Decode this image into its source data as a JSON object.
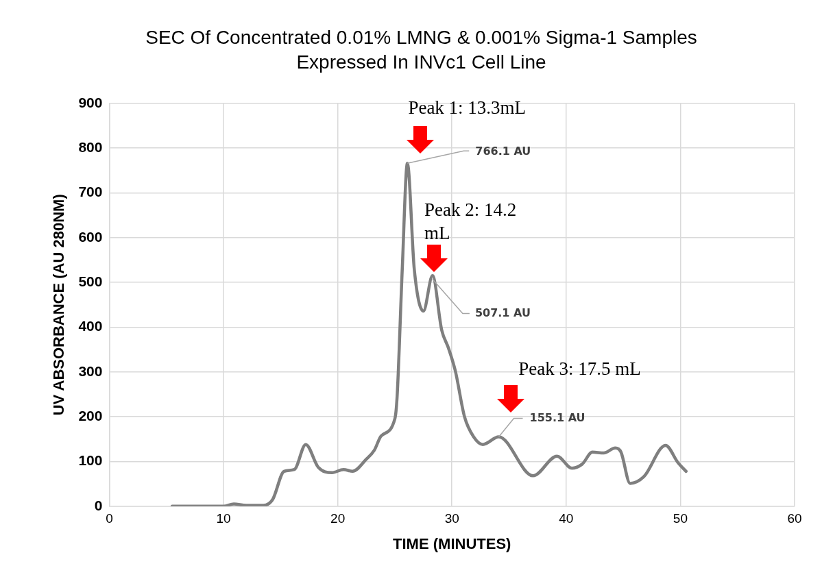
{
  "chart_data": {
    "type": "line",
    "title": "SEC Of Concentrated 0.01% LMNG & 0.001% Sigma-1 Samples\nExpressed In INVc1 Cell Line",
    "xlabel": "TIME (MINUTES)",
    "ylabel": "UV ABSORBANCE (AU 280NM)",
    "xlim": [
      0,
      60
    ],
    "xticks": [
      0,
      10,
      20,
      30,
      40,
      50,
      60
    ],
    "ylim": [
      0,
      900
    ],
    "yticks": [
      0,
      100,
      200,
      300,
      400,
      500,
      600,
      700,
      800,
      900
    ],
    "grid": true,
    "legend": false,
    "marker": "none",
    "line_style": "solid",
    "series": [
      {
        "color": "#7f7f7f",
        "x": [
          5.5,
          10,
          10.9,
          12,
          13.5,
          14.3,
          15.3,
          16.2,
          17.2,
          18.3,
          19.5,
          20.5,
          21.3,
          22.5,
          23.2,
          23.8,
          25,
          25.2,
          25.65,
          26.1,
          26.7,
          27.5,
          28.3,
          29.1,
          29.7,
          30.3,
          31.1,
          31.9,
          32.7,
          34.1,
          37.1,
          39.2,
          40.5,
          41.4,
          42.3,
          43.3,
          44.3,
          44.8,
          45.6,
          46.8,
          48.7,
          49.8,
          50.5
        ],
        "values": [
          0,
          0,
          5,
          2,
          2,
          15,
          78,
          82,
          138,
          87,
          75,
          82,
          78,
          105,
          125,
          157,
          195,
          245,
          530,
          766,
          530,
          436,
          515,
          394,
          353,
          302,
          200,
          155,
          138,
          155,
          68,
          112,
          85,
          94,
          121,
          119,
          130,
          121,
          51,
          66,
          136,
          97,
          78
        ]
      }
    ],
    "annotations": [
      "Peak 1: 13.3mL",
      {
        "text": "766.1 AU",
        "x": 26.1,
        "y": 766.1
      },
      "Peak 2: 14.2 mL",
      {
        "text": "507.1 AU",
        "x": 28.3,
        "y": 507.1
      },
      "Peak 3: 17.5 mL",
      {
        "text": "155.1 AU",
        "x": 34.1,
        "y": 155.1
      }
    ]
  }
}
